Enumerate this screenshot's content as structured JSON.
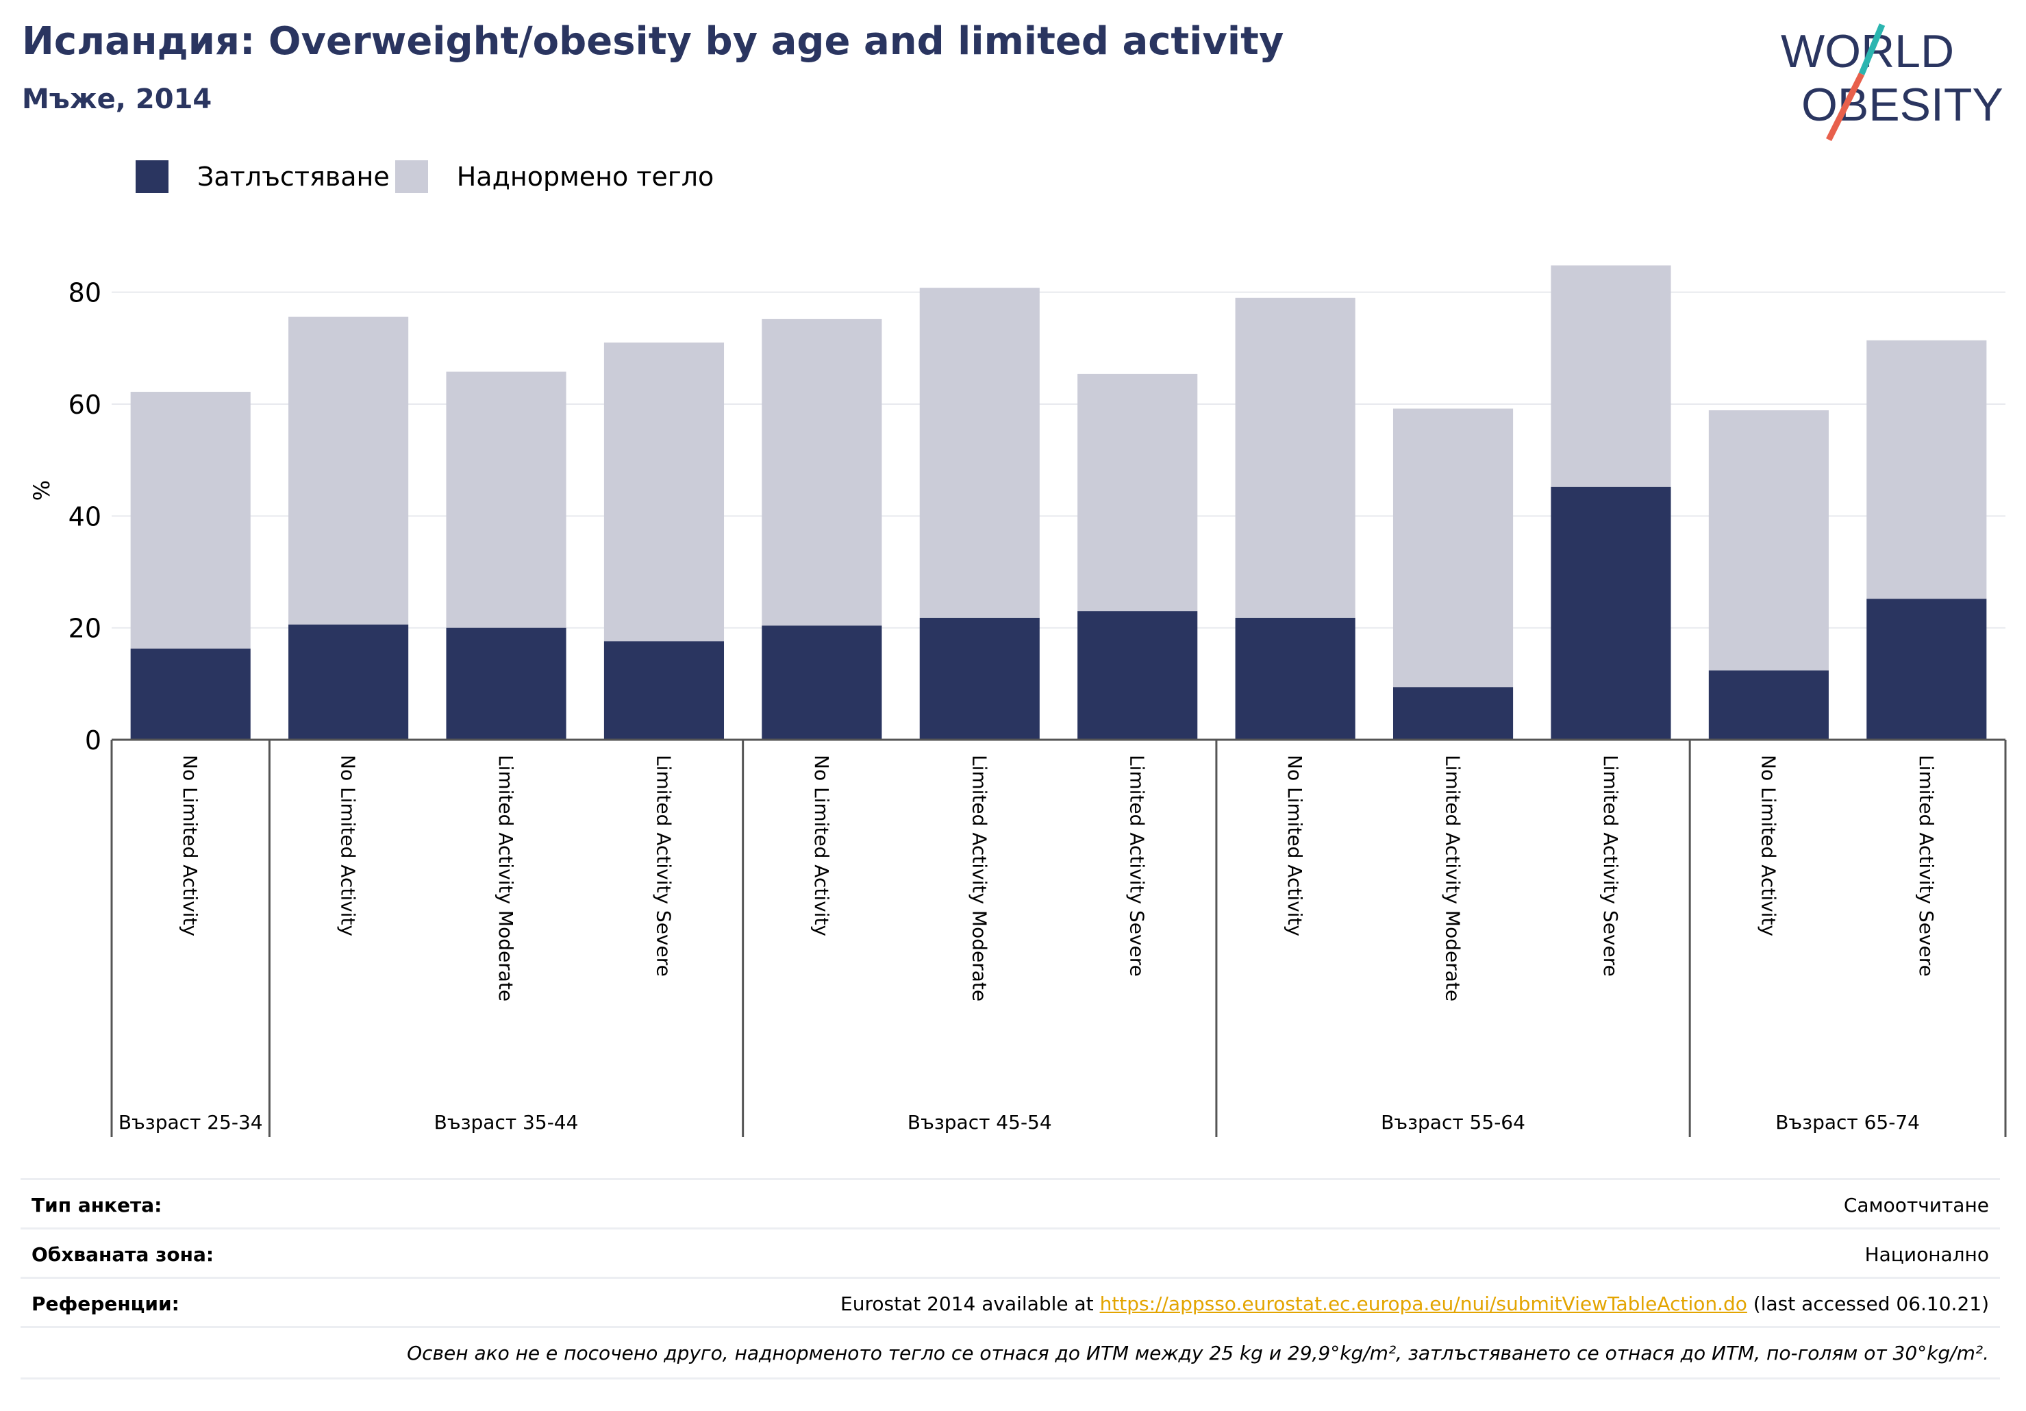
{
  "header": {
    "title": "Исландия: Overweight/obesity by age and limited activity",
    "subtitle": "Мъже, 2014"
  },
  "logo": {
    "line1": "WORLD",
    "line2": "OBESITY"
  },
  "colors": {
    "obesity": "#2a3560",
    "overweight": "#cbccd8",
    "accent_red": "#e8604c",
    "accent_teal": "#2bb5b0",
    "link": "#e3a400"
  },
  "chart_data": {
    "type": "bar",
    "stacked": true,
    "ylabel": "%",
    "ylim": [
      0,
      90
    ],
    "yticks": [
      0,
      20,
      40,
      60,
      80
    ],
    "grid": true,
    "legend_position": "top-left",
    "categories": [
      "No Limited Activity",
      "No Limited Activity",
      "Limited Activity Moderate",
      "Limited Activity Severe",
      "No Limited Activity",
      "Limited Activity Moderate",
      "Limited Activity Severe",
      "No Limited Activity",
      "Limited Activity Moderate",
      "Limited Activity Severe",
      "No Limited Activity",
      "Limited Activity Severe"
    ],
    "groups": [
      {
        "label": "Възраст 25-34",
        "count": 1
      },
      {
        "label": "Възраст 35-44",
        "count": 3
      },
      {
        "label": "Възраст 45-54",
        "count": 3
      },
      {
        "label": "Възраст 55-64",
        "count": 3
      },
      {
        "label": "Възраст 65-74",
        "count": 2
      }
    ],
    "series": [
      {
        "name": "Затлъстяване",
        "values": [
          16.3,
          20.6,
          20.0,
          17.6,
          20.4,
          21.8,
          23.0,
          21.8,
          9.4,
          45.2,
          12.4,
          25.2
        ]
      },
      {
        "name": "Наднормено тегло",
        "values": [
          45.9,
          55.0,
          45.8,
          53.4,
          54.8,
          59.0,
          42.4,
          57.2,
          49.8,
          39.6,
          46.5,
          46.2
        ]
      }
    ]
  },
  "meta": {
    "survey_type_label": "Тип анкета:",
    "survey_type_value": "Самоотчитане",
    "coverage_label": "Обхваната зона:",
    "coverage_value": "Национално",
    "references_label": "Референции:",
    "references_prefix": "Eurostat 2014 available at ",
    "references_link": "https://appsso.eurostat.ec.europa.eu/nui/submitViewTableAction.do",
    "references_suffix": " (last accessed 06.10.21)",
    "note": "Освен ако не е посочено друго, наднорменото тегло се отнася до ИТМ между 25 kg и 29,9°kg/m², затлъстяването се отнася до ИТМ, по-голям от 30°kg/m²."
  }
}
